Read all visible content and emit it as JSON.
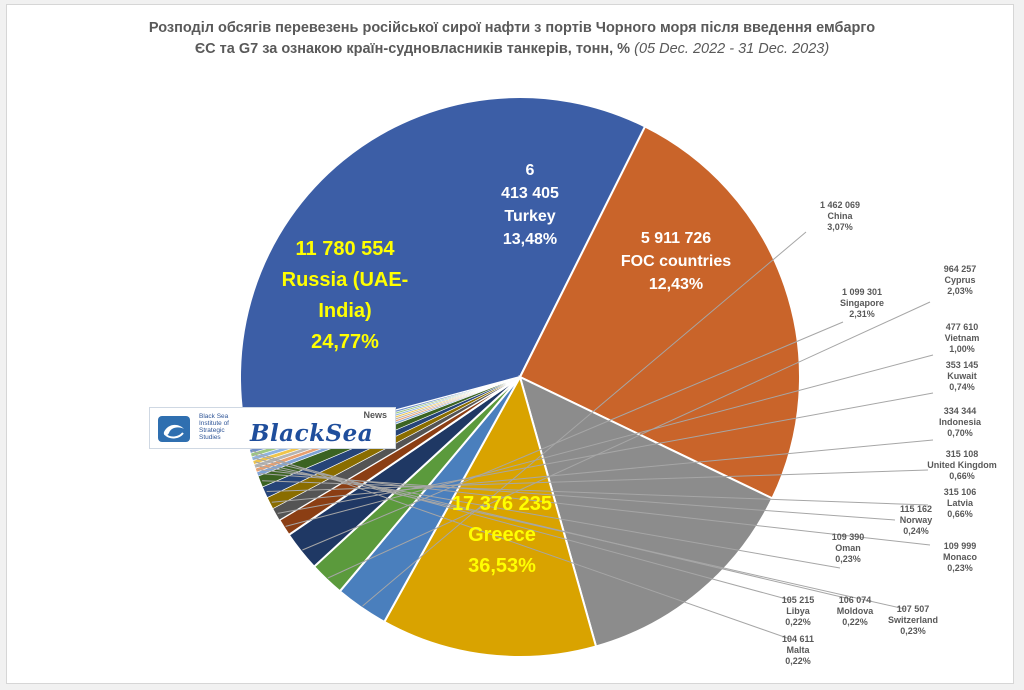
{
  "title": {
    "line1": "Розподіл обсягів перевезень російської сирої нафти з портів Чорного моря після введення ембарго",
    "line2": "ЄС та G7 за ознакою країн-судновласників танкерів, тонн, %",
    "period": "(05 Dec. 2022 - 31 Dec. 2023)"
  },
  "logo": {
    "institute_lines": [
      "Black Sea",
      "Institute of",
      "Strategic",
      "Studies"
    ],
    "brand": "BlackSea",
    "brand_suffix": "News"
  },
  "colors": {
    "label_yellow": "#ffff00",
    "label_white": "#ffffff",
    "small_label": "#595959",
    "leader": "#a6a6a6"
  },
  "chart_data": {
    "type": "pie",
    "unit": "тонн",
    "slices": [
      {
        "name": "Greece",
        "value_text": "17 376 235",
        "value": 17376235,
        "percent": 36.53,
        "percent_text": "36,53%",
        "color": "#3c5ea6"
      },
      {
        "name": "Russia (UAE-India)",
        "value_text": "11 780 554",
        "value": 11780554,
        "percent": 24.77,
        "percent_text": "24,77%",
        "color": "#c9642a"
      },
      {
        "name": "Turkey",
        "value_text": "6 413 405",
        "value": 6413405,
        "percent": 13.48,
        "percent_text": "13,48%",
        "color": "#8c8c8c"
      },
      {
        "name": "FOC countries",
        "value_text": "5 911 726",
        "value": 5911726,
        "percent": 12.43,
        "percent_text": "12,43%",
        "color": "#d9a300"
      },
      {
        "name": "China",
        "value_text": "1 462 069",
        "value": 1462069,
        "percent": 3.07,
        "percent_text": "3,07%",
        "color": "#4a7fbd"
      },
      {
        "name": "Cyprus",
        "value_text": "964 257",
        "value": 964257,
        "percent": 2.03,
        "percent_text": "2,03%",
        "color": "#5b9a3c"
      },
      {
        "name": "Singapore",
        "value_text": "1 099 301",
        "value": 1099301,
        "percent": 2.31,
        "percent_text": "2,31%",
        "color": "#1f3864"
      },
      {
        "name": "Vietnam",
        "value_text": "477 610",
        "value": 477610,
        "percent": 1.0,
        "percent_text": "1,00%",
        "color": "#8b3e14"
      },
      {
        "name": "Kuwait",
        "value_text": "353 145",
        "value": 353145,
        "percent": 0.74,
        "percent_text": "0,74%",
        "color": "#545454"
      },
      {
        "name": "Indonesia",
        "value_text": "334 344",
        "value": 334344,
        "percent": 0.7,
        "percent_text": "0,70%",
        "color": "#8a6d00"
      },
      {
        "name": "United Kingdom",
        "value_text": "315 108",
        "value": 315108,
        "percent": 0.66,
        "percent_text": "0,66%",
        "color": "#264478"
      },
      {
        "name": "Latvia",
        "value_text": "315 106",
        "value": 315106,
        "percent": 0.66,
        "percent_text": "0,66%",
        "color": "#3b6322"
      },
      {
        "name": "Norway",
        "value_text": "115 162",
        "value": 115162,
        "percent": 0.24,
        "percent_text": "0,24%",
        "color": "#7ea3d6"
      },
      {
        "name": "Monaco",
        "value_text": "109 999",
        "value": 109999,
        "percent": 0.23,
        "percent_text": "0,23%",
        "color": "#e8a070"
      },
      {
        "name": "Oman",
        "value_text": "109 390",
        "value": 109390,
        "percent": 0.23,
        "percent_text": "0,23%",
        "color": "#b5b5b5"
      },
      {
        "name": "Switzerland",
        "value_text": "107 507",
        "value": 107507,
        "percent": 0.23,
        "percent_text": "0,23%",
        "color": "#f0c54a"
      },
      {
        "name": "Moldova",
        "value_text": "106 074",
        "value": 106074,
        "percent": 0.22,
        "percent_text": "0,22%",
        "color": "#8fb4e0"
      },
      {
        "name": "Libya",
        "value_text": "105 215",
        "value": 105215,
        "percent": 0.22,
        "percent_text": "0,22%",
        "color": "#9dc880"
      },
      {
        "name": "Malta",
        "value_text": "104 611",
        "value": 104611,
        "percent": 0.22,
        "percent_text": "0,22%",
        "color": "#6f8fc9"
      }
    ]
  }
}
